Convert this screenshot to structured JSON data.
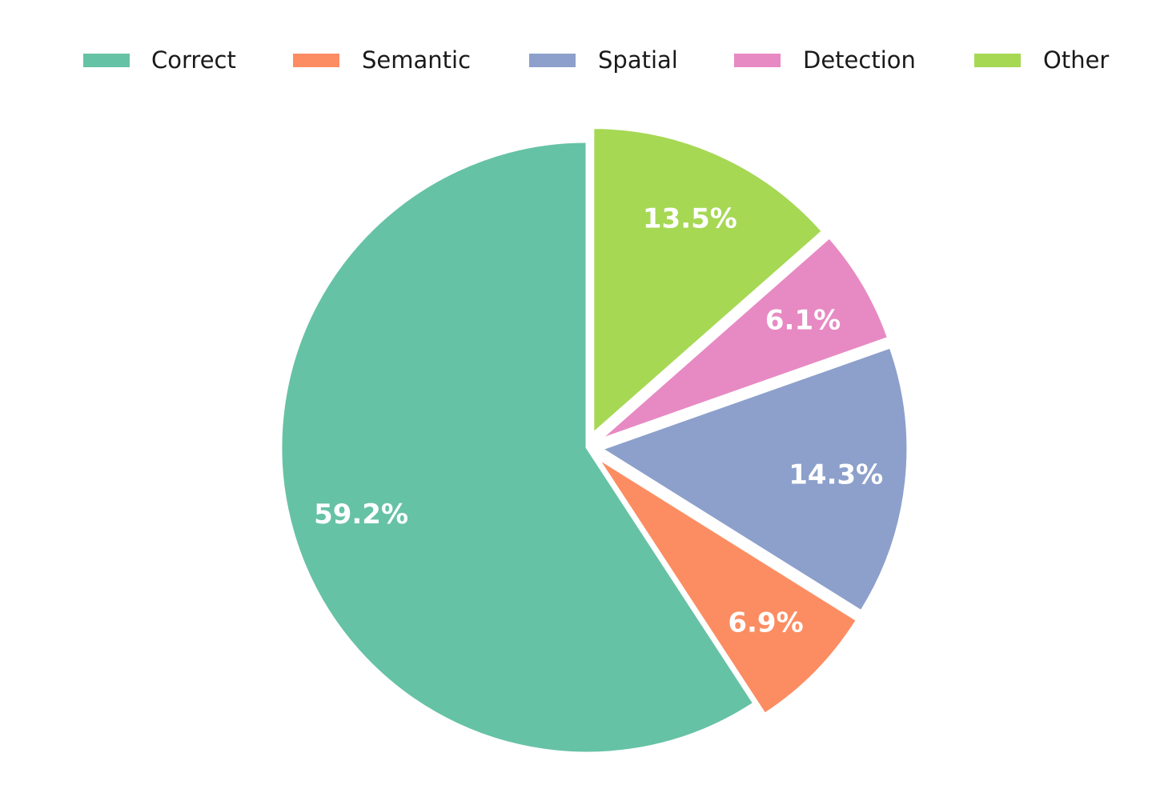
{
  "chart_data": {
    "type": "pie",
    "title": "",
    "categories": [
      "Correct",
      "Semantic",
      "Spatial",
      "Detection",
      "Other"
    ],
    "values": [
      59.2,
      6.9,
      14.3,
      6.1,
      13.5
    ],
    "value_labels": [
      "59.2%",
      "6.9%",
      "14.3%",
      "6.1%",
      "13.5%"
    ],
    "colors": [
      "#66c2a5",
      "#fc8d62",
      "#8da0cb",
      "#e78ac3",
      "#a6d854"
    ],
    "start_angle_deg": 90,
    "direction": "counterclockwise",
    "exploded": [
      "Semantic",
      "Spatial",
      "Detection",
      "Other"
    ],
    "legend_position": "top"
  }
}
